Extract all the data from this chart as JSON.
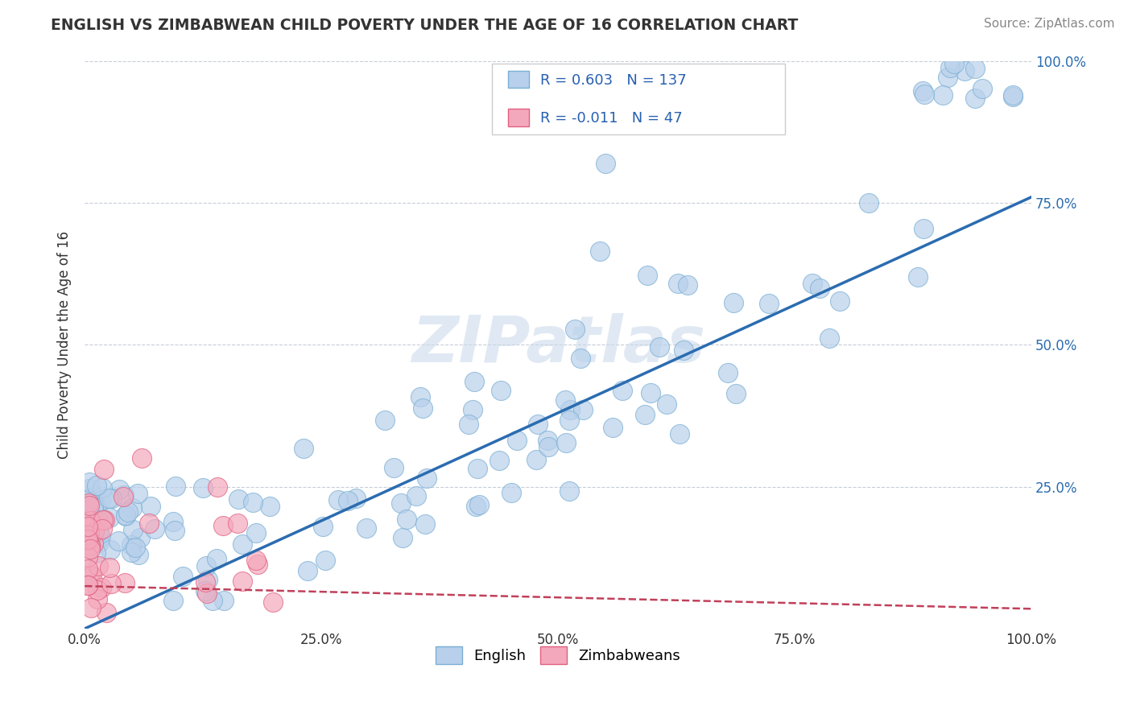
{
  "title": "ENGLISH VS ZIMBABWEAN CHILD POVERTY UNDER THE AGE OF 16 CORRELATION CHART",
  "source": "Source: ZipAtlas.com",
  "ylabel": "Child Poverty Under the Age of 16",
  "xlim": [
    0,
    1.0
  ],
  "ylim": [
    0,
    1.0
  ],
  "xtick_labels": [
    "0.0%",
    "25.0%",
    "50.0%",
    "75.0%",
    "100.0%"
  ],
  "xtick_values": [
    0.0,
    0.25,
    0.5,
    0.75,
    1.0
  ],
  "ytick_labels": [
    "25.0%",
    "50.0%",
    "75.0%",
    "100.0%"
  ],
  "ytick_values": [
    0.25,
    0.5,
    0.75,
    1.0
  ],
  "english_face_color": "#b8d0eb",
  "english_edge_color": "#7aafd4",
  "zimbabwean_face_color": "#f4a8bc",
  "zimbabwean_edge_color": "#e06080",
  "regression_english_color": "#2b6cb0",
  "regression_zimbabwean_color": "#c0405a",
  "R_english": 0.603,
  "N_english": 137,
  "R_zimbabwean": -0.011,
  "N_zimbabwean": 47,
  "english_slope": 0.76,
  "english_intercept": 0.0,
  "zimbabwean_slope": -0.04,
  "zimbabwean_intercept": 0.075,
  "watermark": "ZIPatlas",
  "legend_english": "English",
  "legend_zimbabwean": "Zimbabweans",
  "background_color": "#ffffff",
  "grid_color": "#b0b8c8",
  "title_color": "#333333",
  "source_color": "#888888",
  "ytick_color": "#2b6cb0",
  "xtick_color": "#333333"
}
